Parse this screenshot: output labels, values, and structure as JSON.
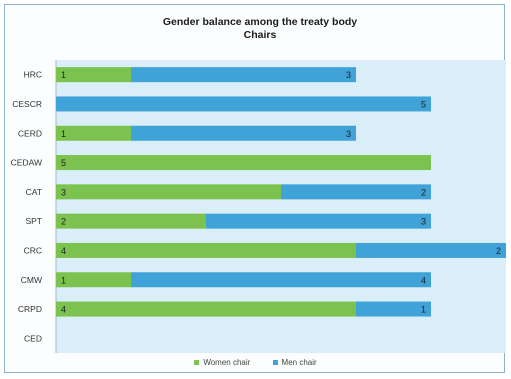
{
  "chart_data": {
    "type": "bar",
    "orientation": "horizontal",
    "stacked": true,
    "title": [
      "Gender balance among the treaty body",
      "Chairs"
    ],
    "categories": [
      "HRC",
      "CESCR",
      "CERD",
      "CEDAW",
      "CAT",
      "SPT",
      "CRC",
      "CMW",
      "CRPD",
      "CED"
    ],
    "series": [
      {
        "name": "Women chair",
        "color": "#7bc24e",
        "values": [
          1,
          0,
          1,
          5,
          3,
          2,
          4,
          1,
          4,
          0
        ]
      },
      {
        "name": "Men chair",
        "color": "#3fa3d8",
        "values": [
          3,
          5,
          3,
          0,
          2,
          3,
          2,
          4,
          1,
          0
        ]
      }
    ],
    "xlim": [
      0,
      6
    ],
    "grid": false,
    "legend_position": "bottom",
    "plot_background": "#daeef7"
  },
  "legend": {
    "women_label": "Women chair",
    "men_label": "Men chair"
  }
}
